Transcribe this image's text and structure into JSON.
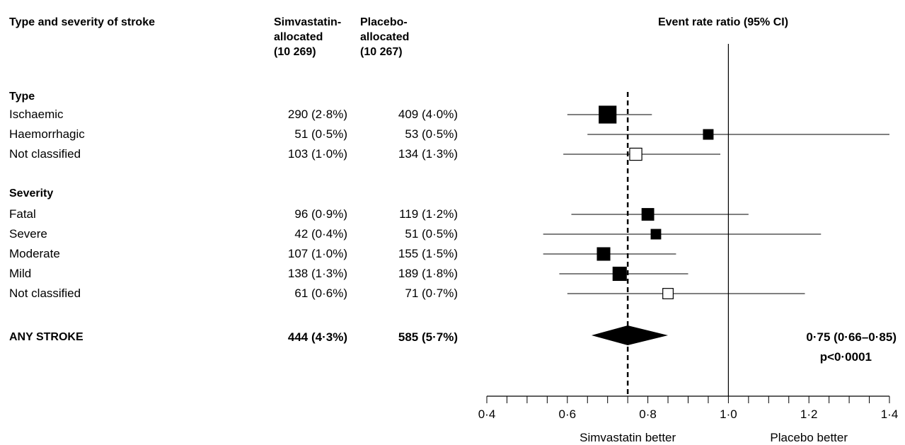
{
  "headers": {
    "type": "Type and severity of stroke",
    "simva": [
      "Simvastatin-",
      "allocated",
      "(10 269)"
    ],
    "placebo": [
      "Placebo-",
      "allocated",
      "(10 267)"
    ],
    "ratio": "Event rate ratio (95% CI)"
  },
  "sections": {
    "type": "Type",
    "severity": "Severity"
  },
  "rows": [
    {
      "label": "Ischaemic",
      "simva": "290 (2·8%)",
      "placebo": "409 (4·0%)"
    },
    {
      "label": "Haemorrhagic",
      "simva": "51 (0·5%)",
      "placebo": "53 (0·5%)"
    },
    {
      "label": "Not classified",
      "simva": "103 (1·0%)",
      "placebo": "134 (1·3%)"
    },
    {
      "label": "Fatal",
      "simva": "96 (0·9%)",
      "placebo": "119 (1·2%)"
    },
    {
      "label": "Severe",
      "simva": "42 (0·4%)",
      "placebo": "51 (0·5%)"
    },
    {
      "label": "Moderate",
      "simva": "107 (1·0%)",
      "placebo": "155 (1·5%)"
    },
    {
      "label": "Mild",
      "simva": "138 (1·3%)",
      "placebo": "189 (1·8%)"
    },
    {
      "label": "Not classified",
      "simva": "61 (0·6%)",
      "placebo": "71 (0·7%)"
    }
  ],
  "total": {
    "label": "ANY STROKE",
    "simva": "444 (4·3%)",
    "placebo": "585 (5·7%)"
  },
  "summary": {
    "estimate": "0·75 (0·66–0·85)",
    "p": "p<0·0001"
  },
  "axis": {
    "left_label": "Simvastatin better",
    "right_label": "Placebo better"
  },
  "chart_data": {
    "type": "forest",
    "title": "Event rate ratio (95% CI)",
    "xlim": [
      0.4,
      1.4
    ],
    "xticks": [
      0.4,
      0.6,
      0.8,
      1.0,
      1.2,
      1.4
    ],
    "xtick_labels": [
      "0·4",
      "0·6",
      "0·8",
      "1·0",
      "1·2",
      "1·4"
    ],
    "minor_step": 0.1,
    "reference_line": 1.0,
    "overall_line": 0.75,
    "rows": [
      {
        "label": "Ischaemic",
        "ratio": 0.7,
        "lo": 0.6,
        "hi": 0.81,
        "filled": true,
        "weight": 409
      },
      {
        "label": "Haemorrhagic",
        "ratio": 0.95,
        "lo": 0.65,
        "hi": 1.4,
        "filled": true,
        "weight": 53
      },
      {
        "label": "Not classified",
        "ratio": 0.77,
        "lo": 0.59,
        "hi": 0.98,
        "filled": false,
        "weight": 134
      },
      {
        "label": "Fatal",
        "ratio": 0.8,
        "lo": 0.61,
        "hi": 1.05,
        "filled": true,
        "weight": 119
      },
      {
        "label": "Severe",
        "ratio": 0.82,
        "lo": 0.54,
        "hi": 1.23,
        "filled": true,
        "weight": 51
      },
      {
        "label": "Moderate",
        "ratio": 0.69,
        "lo": 0.54,
        "hi": 0.87,
        "filled": true,
        "weight": 155
      },
      {
        "label": "Mild",
        "ratio": 0.73,
        "lo": 0.58,
        "hi": 0.9,
        "filled": true,
        "weight": 189
      },
      {
        "label": "Not classified",
        "ratio": 0.85,
        "lo": 0.6,
        "hi": 1.19,
        "filled": false,
        "weight": 71
      }
    ],
    "total": {
      "label": "ANY STROKE",
      "ratio": 0.75,
      "lo": 0.66,
      "hi": 0.85
    }
  }
}
